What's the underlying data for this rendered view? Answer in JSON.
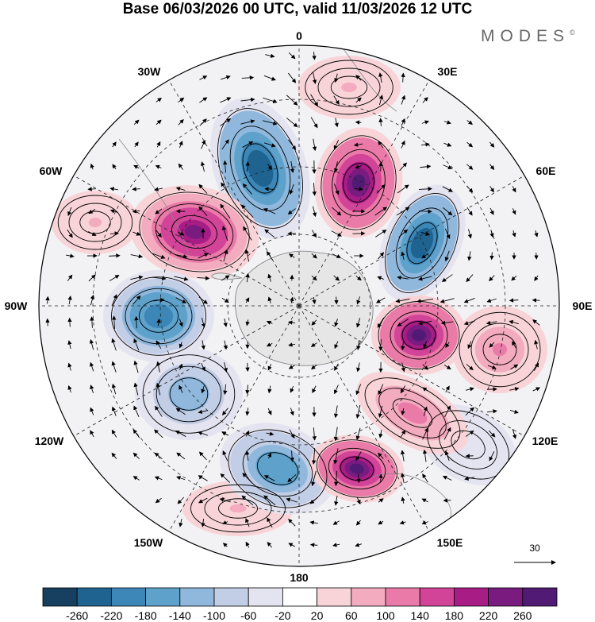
{
  "title": "Base 06/03/2026 00 UTC, valid 11/03/2026 12 UTC",
  "brand": "MODES",
  "brand_mark": "©",
  "map": {
    "projection": "south-polar-stereographic",
    "longitude_labels": [
      {
        "id": "0",
        "text": "0"
      },
      {
        "id": "30E",
        "text": "30E"
      },
      {
        "id": "60E",
        "text": "60E"
      },
      {
        "id": "90E",
        "text": "90E"
      },
      {
        "id": "120E",
        "text": "120E"
      },
      {
        "id": "150E",
        "text": "150E"
      },
      {
        "id": "180",
        "text": "180"
      },
      {
        "id": "150W",
        "text": "150W"
      },
      {
        "id": "120W",
        "text": "120W"
      },
      {
        "id": "90W",
        "text": "90W"
      },
      {
        "id": "60W",
        "text": "60W"
      },
      {
        "id": "30W",
        "text": "30W"
      }
    ],
    "anomaly_centers": [
      {
        "name": "low-center-1",
        "sign": "negative",
        "value": -260
      },
      {
        "name": "high-center-1",
        "sign": "positive",
        "value": 260
      },
      {
        "name": "low-center-2",
        "sign": "negative",
        "value": -260
      },
      {
        "name": "high-center-2",
        "sign": "positive",
        "value": 220
      },
      {
        "name": "low-center-3",
        "sign": "negative",
        "value": -220
      },
      {
        "name": "high-center-3",
        "sign": "positive",
        "value": 260
      },
      {
        "name": "low-center-4",
        "sign": "negative",
        "value": -140
      },
      {
        "name": "high-center-4",
        "sign": "positive",
        "value": 120
      },
      {
        "name": "low-center-5",
        "sign": "negative",
        "value": -180
      },
      {
        "name": "high-center-5",
        "sign": "positive",
        "value": 260
      }
    ],
    "wind_reference": {
      "value": "30"
    }
  },
  "colorbar": {
    "ticks": [
      "-260",
      "-220",
      "-180",
      "-140",
      "-100",
      "-60",
      "-20",
      "20",
      "60",
      "100",
      "140",
      "180",
      "220",
      "260"
    ],
    "colors": [
      "#173f5f",
      "#1f6390",
      "#3c87b8",
      "#5ea2cc",
      "#8fb8dc",
      "#c2cde6",
      "#e4e3f0",
      "#ffffff",
      "#f8d4d8",
      "#f3abbf",
      "#ea7ba8",
      "#d24497",
      "#a81d85",
      "#7a1b80",
      "#501a75"
    ]
  }
}
